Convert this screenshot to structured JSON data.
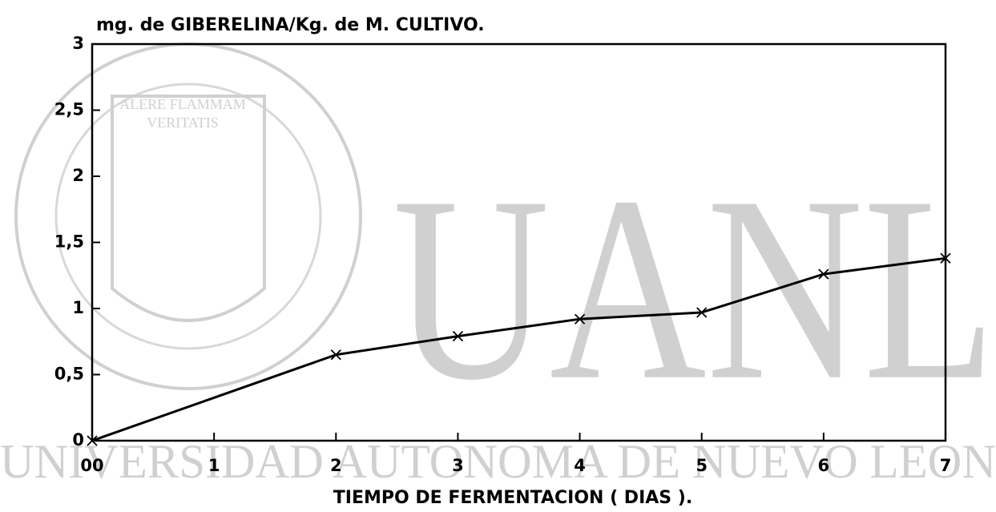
{
  "chart_data": {
    "type": "line",
    "title": "mg. de GIBERELINA/Kg. de M. CULTIVO.",
    "x_label": "TIEMPO DE FERMENTACION ( DIAS ).",
    "x": [
      0,
      2,
      3,
      4,
      5,
      6,
      7
    ],
    "series": [
      {
        "color": "#000000",
        "values": [
          0,
          0.65,
          0.79,
          0.92,
          0.97,
          1.26,
          1.38
        ]
      }
    ],
    "xlim": [
      0,
      7
    ],
    "xticks": [
      {
        "value": 0,
        "label": "00"
      },
      1,
      2,
      3,
      4,
      5,
      6,
      7
    ],
    "ylim": [
      0,
      3
    ],
    "yticks": [
      0,
      {
        "value": 0.5,
        "label": "0,5"
      },
      1,
      {
        "value": 1.5,
        "label": "1,5"
      },
      2,
      {
        "value": 2.5,
        "label": "2,5"
      },
      3
    ],
    "grid": false
  },
  "watermark": {
    "logo": "UANL",
    "motto_top": "ALERE FLAMMAM",
    "motto_bottom": "VERITATIS",
    "name": "UNIVERSIDAD AUTONOMA DE NUEVO LEON"
  }
}
